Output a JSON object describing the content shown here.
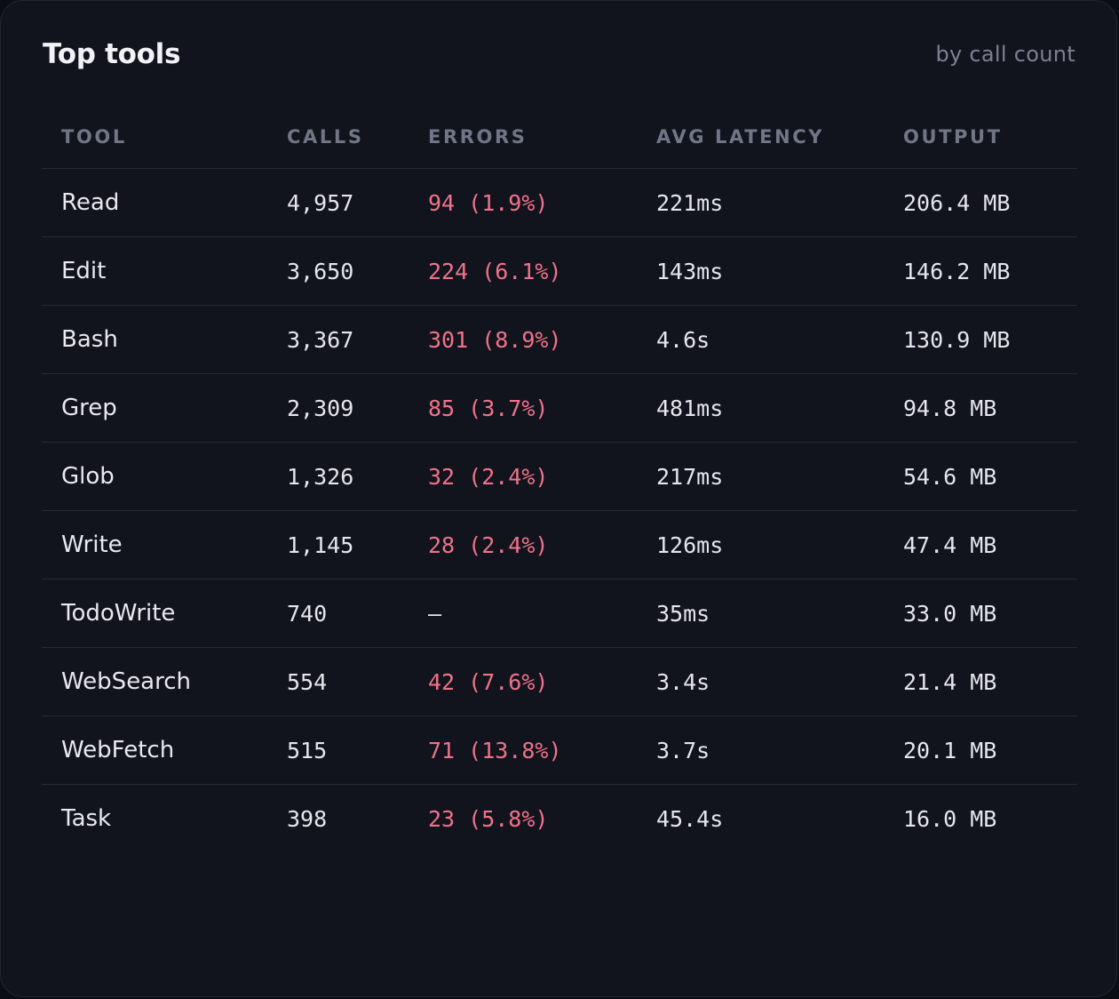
{
  "card": {
    "title": "Top tools",
    "subtitle": "by call count"
  },
  "table": {
    "columns": [
      "TOOL",
      "CALLS",
      "ERRORS",
      "AVG LATENCY",
      "OUTPUT"
    ],
    "rows": [
      {
        "tool": "Read",
        "calls": "4,957",
        "errors": "94 (1.9%)",
        "latency": "221ms",
        "output": "206.4 MB"
      },
      {
        "tool": "Edit",
        "calls": "3,650",
        "errors": "224 (6.1%)",
        "latency": "143ms",
        "output": "146.2 MB"
      },
      {
        "tool": "Bash",
        "calls": "3,367",
        "errors": "301 (8.9%)",
        "latency": "4.6s",
        "output": "130.9 MB"
      },
      {
        "tool": "Grep",
        "calls": "2,309",
        "errors": "85 (3.7%)",
        "latency": "481ms",
        "output": "94.8 MB"
      },
      {
        "tool": "Glob",
        "calls": "1,326",
        "errors": "32 (2.4%)",
        "latency": "217ms",
        "output": "54.6 MB"
      },
      {
        "tool": "Write",
        "calls": "1,145",
        "errors": "28 (2.4%)",
        "latency": "126ms",
        "output": "47.4 MB"
      },
      {
        "tool": "TodoWrite",
        "calls": "740",
        "errors": "—",
        "latency": "35ms",
        "output": "33.0 MB"
      },
      {
        "tool": "WebSearch",
        "calls": "554",
        "errors": "42 (7.6%)",
        "latency": "3.4s",
        "output": "21.4 MB"
      },
      {
        "tool": "WebFetch",
        "calls": "515",
        "errors": "71 (13.8%)",
        "latency": "3.7s",
        "output": "20.1 MB"
      },
      {
        "tool": "Task",
        "calls": "398",
        "errors": "23 (5.8%)",
        "latency": "45.4s",
        "output": "16.0 MB"
      }
    ]
  },
  "colors": {
    "background": "#12141d",
    "error_text": "#f0728a",
    "header_text": "#717687"
  }
}
